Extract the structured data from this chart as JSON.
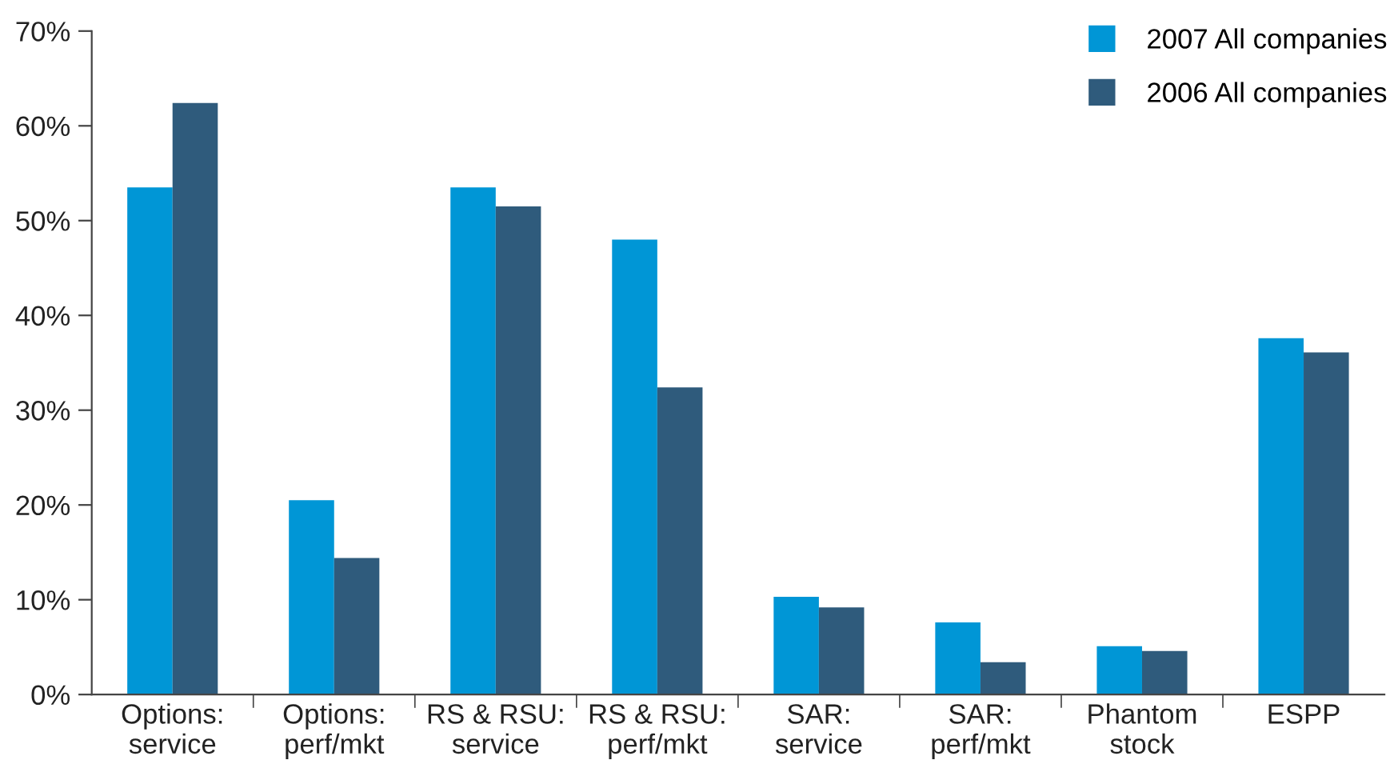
{
  "chart_data": {
    "type": "bar",
    "categories": [
      "Options:\nservice",
      "Options:\nperf/mkt",
      "RS & RSU:\nservice",
      "RS & RSU:\nperf/mkt",
      "SAR:\nservice",
      "SAR:\nperf/mkt",
      "Phantom\nstock",
      "ESPP"
    ],
    "series": [
      {
        "name": "2007 All companies",
        "color": "#0096d6",
        "values": [
          53.5,
          20.5,
          53.5,
          48.0,
          10.3,
          7.6,
          5.1,
          37.6
        ]
      },
      {
        "name": "2006 All companies",
        "color": "#2f5b7c",
        "values": [
          62.4,
          14.4,
          51.5,
          32.4,
          9.2,
          3.4,
          4.6,
          36.1
        ]
      }
    ],
    "ylim": [
      0,
      70
    ],
    "yticks": [
      {
        "value": 0,
        "label": "0%"
      },
      {
        "value": 10,
        "label": "10%"
      },
      {
        "value": 20,
        "label": "20%"
      },
      {
        "value": 30,
        "label": "30%"
      },
      {
        "value": 40,
        "label": "40%"
      },
      {
        "value": 50,
        "label": "50%"
      },
      {
        "value": 60,
        "label": "60%"
      },
      {
        "value": 70,
        "label": "70%"
      }
    ],
    "grid": false,
    "legend": "top right"
  }
}
